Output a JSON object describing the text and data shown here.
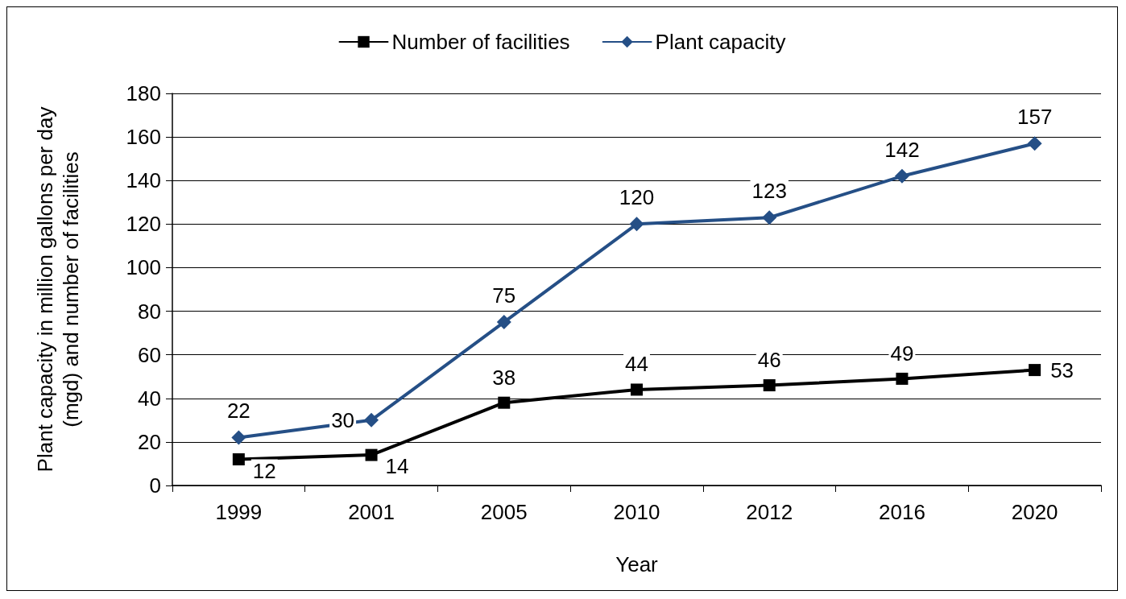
{
  "chart_data": {
    "type": "line",
    "xlabel": "Year",
    "ylabel": "Plant capacity in million gallons per day\n(mgd) and number of facilities",
    "categories": [
      "1999",
      "2001",
      "2005",
      "2010",
      "2012",
      "2016",
      "2020"
    ],
    "series": [
      {
        "name": "Number of facilities",
        "color": "#000000",
        "marker": "square",
        "values": [
          12,
          14,
          38,
          44,
          46,
          49,
          53
        ]
      },
      {
        "name": "Plant capacity",
        "color": "#254f86",
        "marker": "diamond",
        "values": [
          22,
          30,
          75,
          120,
          123,
          142,
          157
        ]
      }
    ],
    "ylim": [
      0,
      180
    ],
    "yticks": [
      0,
      20,
      40,
      60,
      80,
      100,
      120,
      140,
      160,
      180
    ],
    "grid": "y",
    "legend": "top",
    "data_labels": true,
    "line_style": "solid"
  }
}
